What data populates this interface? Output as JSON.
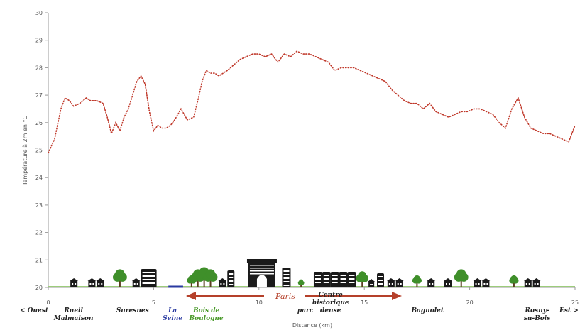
{
  "chart_data": {
    "type": "line",
    "title": "",
    "xlabel": "Distance (km)",
    "ylabel": "Température à 2m en °C",
    "xlim": [
      0,
      25
    ],
    "ylim": [
      20,
      30
    ],
    "x_ticks": [
      0,
      5,
      10,
      15,
      20,
      25
    ],
    "y_ticks": [
      20,
      21,
      22,
      23,
      24,
      25,
      26,
      27,
      28,
      29,
      30
    ],
    "grid": false,
    "series": [
      {
        "name": "",
        "color": "#c0392b",
        "style": "dotted",
        "x": [
          0.0,
          0.3,
          0.6,
          0.8,
          1.0,
          1.2,
          1.5,
          1.8,
          2.0,
          2.3,
          2.6,
          2.8,
          3.0,
          3.2,
          3.4,
          3.6,
          3.8,
          4.0,
          4.2,
          4.4,
          4.6,
          4.8,
          5.0,
          5.2,
          5.4,
          5.6,
          5.8,
          6.0,
          6.3,
          6.6,
          6.9,
          7.1,
          7.3,
          7.5,
          7.7,
          7.9,
          8.1,
          8.3,
          8.5,
          8.8,
          9.1,
          9.4,
          9.7,
          10.0,
          10.3,
          10.6,
          10.9,
          11.2,
          11.5,
          11.8,
          12.1,
          12.4,
          12.7,
          13.0,
          13.3,
          13.6,
          13.9,
          14.2,
          14.5,
          14.8,
          15.1,
          15.4,
          15.7,
          16.0,
          16.3,
          16.6,
          16.9,
          17.2,
          17.5,
          17.8,
          18.1,
          18.4,
          18.7,
          19.0,
          19.3,
          19.6,
          19.9,
          20.2,
          20.5,
          20.8,
          21.1,
          21.4,
          21.7,
          22.0,
          22.3,
          22.6,
          22.9,
          23.2,
          23.5,
          23.8,
          24.1,
          24.4,
          24.7,
          25.0
        ],
        "y": [
          24.9,
          25.4,
          26.5,
          26.9,
          26.8,
          26.6,
          26.7,
          26.9,
          26.8,
          26.8,
          26.7,
          26.2,
          25.6,
          26.0,
          25.7,
          26.2,
          26.5,
          27.0,
          27.5,
          27.7,
          27.4,
          26.4,
          25.7,
          25.9,
          25.8,
          25.8,
          25.9,
          26.1,
          26.5,
          26.1,
          26.2,
          26.8,
          27.5,
          27.9,
          27.8,
          27.8,
          27.7,
          27.8,
          27.9,
          28.1,
          28.3,
          28.4,
          28.5,
          28.5,
          28.4,
          28.5,
          28.2,
          28.5,
          28.4,
          28.6,
          28.5,
          28.5,
          28.4,
          28.3,
          28.2,
          27.9,
          28.0,
          28.0,
          28.0,
          27.9,
          27.8,
          27.7,
          27.6,
          27.5,
          27.2,
          27.0,
          26.8,
          26.7,
          26.7,
          26.5,
          26.7,
          26.4,
          26.3,
          26.2,
          26.3,
          26.4,
          26.4,
          26.5,
          26.5,
          26.4,
          26.3,
          26.0,
          25.8,
          26.5,
          26.9,
          26.2,
          25.8,
          25.7,
          25.6,
          25.6,
          25.5,
          25.4,
          25.3,
          25.9
        ]
      }
    ],
    "annotations": {
      "left_end": "< Ouest",
      "right_end": "Est >",
      "center": "Paris",
      "places": [
        {
          "label": "Rueil\nMalmaison",
          "x": 1.2,
          "color": "dark"
        },
        {
          "label": "Suresnes",
          "x": 4.0,
          "color": "dark"
        },
        {
          "label": "La\nSeine",
          "x": 5.9,
          "color": "blue"
        },
        {
          "label": "Bois de\nBoulogne",
          "x": 7.5,
          "color": "green"
        },
        {
          "label": "parc",
          "x": 12.2,
          "color": "dark"
        },
        {
          "label": "Centre\nhistorique\ndense",
          "x": 13.4,
          "color": "dark"
        },
        {
          "label": "Bagnolet",
          "x": 18.0,
          "color": "dark"
        },
        {
          "label": "Rosny-\nsu-Bois",
          "x": 23.2,
          "color": "dark"
        }
      ]
    },
    "colors": {
      "line": "#c0392b",
      "arrow": "#b5402a",
      "tree": "#3f8f2a",
      "building": "#1a1a1a"
    }
  }
}
